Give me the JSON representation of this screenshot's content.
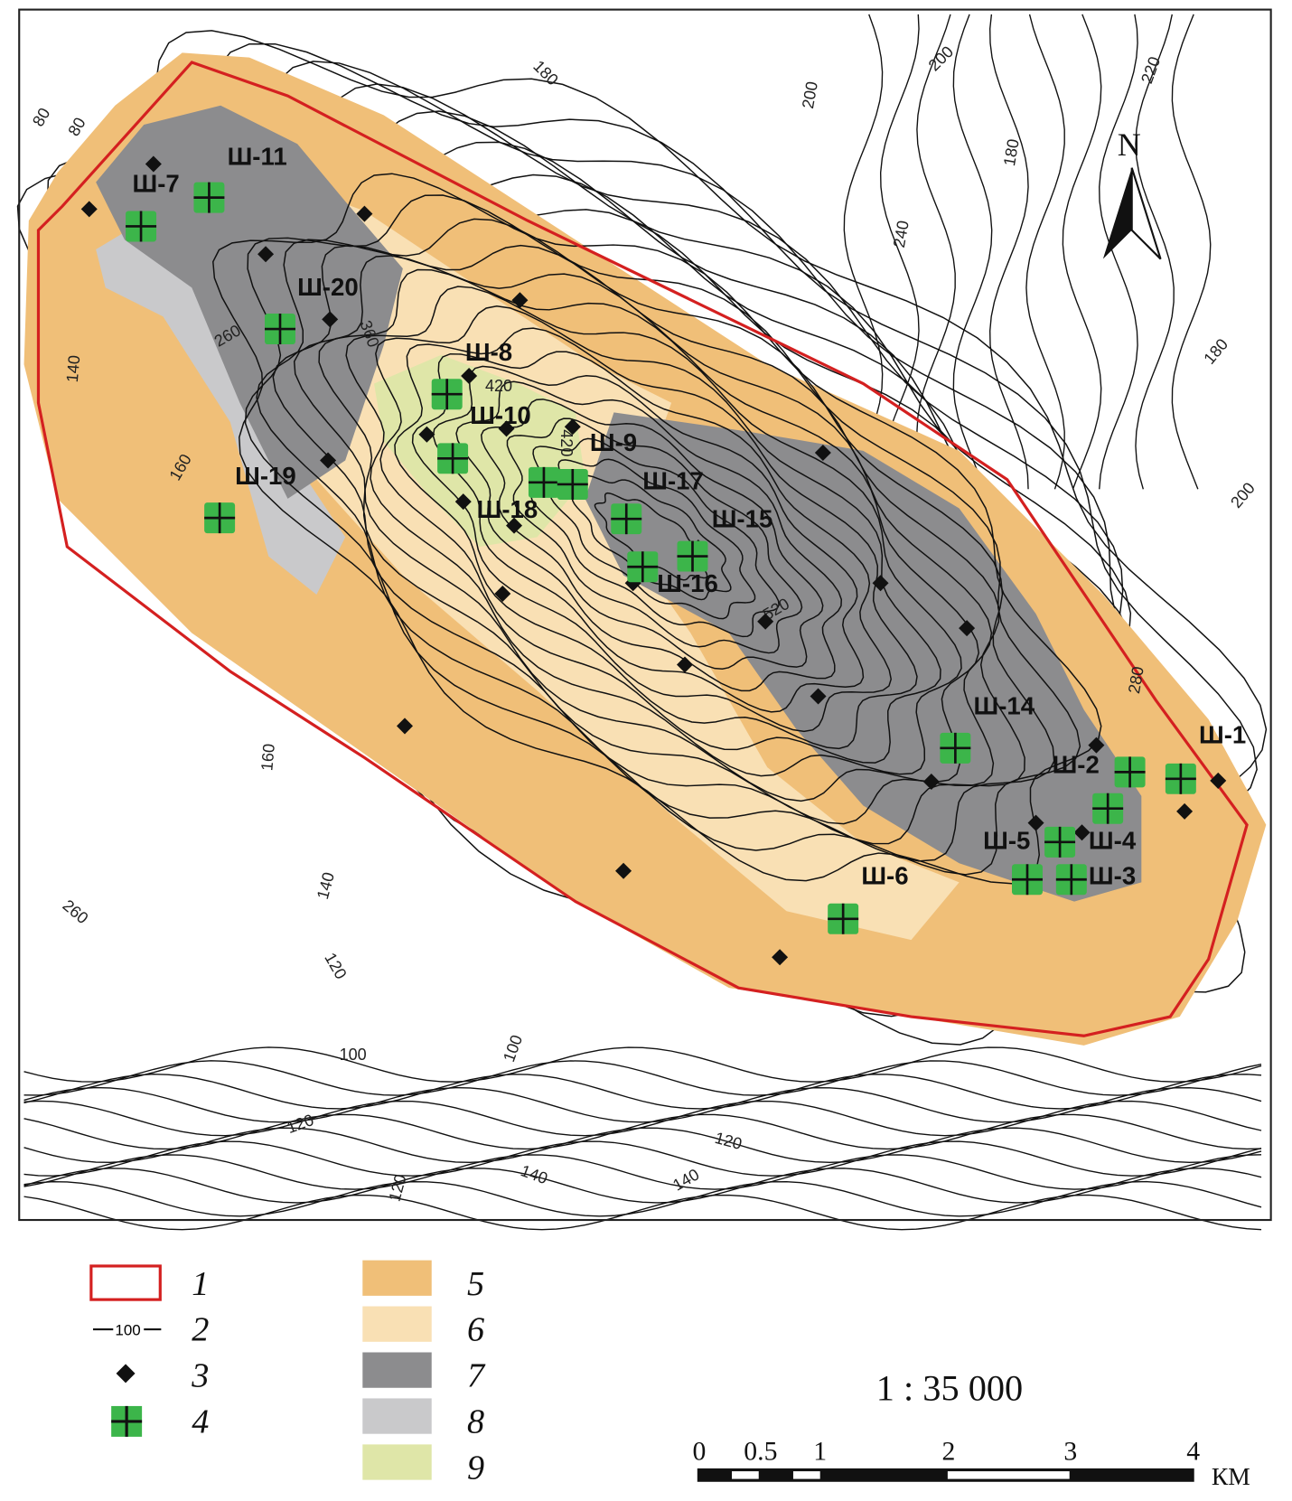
{
  "map": {
    "north_label": "N",
    "wells": [
      "Ш-7",
      "Ш-11",
      "Ш-20",
      "Ш-8",
      "Ш-10",
      "Ш-9",
      "Ш-19",
      "Ш-18",
      "Ш-17",
      "Ш-15",
      "Ш-16",
      "Ш-14",
      "Ш-2",
      "Ш-1",
      "Ш-5",
      "Ш-4",
      "Ш-3",
      "Ш-6"
    ],
    "contour_labels": [
      "80",
      "80",
      "180",
      "200",
      "200",
      "220",
      "180",
      "240",
      "180",
      "200",
      "280",
      "260",
      "360",
      "420",
      "420",
      "520",
      "140",
      "160",
      "160",
      "140",
      "260",
      "120",
      "100",
      "100",
      "120",
      "120",
      "140",
      "140",
      "120"
    ],
    "colors": {
      "zone5": "#f0bf78",
      "zone6": "#f9e0b4",
      "zone7": "#8c8c8e",
      "zone8": "#c9c9cb",
      "zone9": "#dfe6a8",
      "boundary": "#d42020",
      "well_marker": "#3cb54a"
    }
  },
  "legend": {
    "items": [
      {
        "num": "1",
        "symbol": "boundary-rectangle"
      },
      {
        "num": "2",
        "symbol": "contour-line",
        "sample": "100"
      },
      {
        "num": "3",
        "symbol": "diamond"
      },
      {
        "num": "4",
        "symbol": "green-cross"
      },
      {
        "num": "5",
        "symbol": "swatch-zone5"
      },
      {
        "num": "6",
        "symbol": "swatch-zone6"
      },
      {
        "num": "7",
        "symbol": "swatch-zone7"
      },
      {
        "num": "8",
        "symbol": "swatch-zone8"
      },
      {
        "num": "9",
        "symbol": "swatch-zone9"
      }
    ]
  },
  "scale": {
    "ratio": "1 : 35 000",
    "ticks": [
      "0",
      "0.5",
      "1",
      "2",
      "3",
      "4"
    ],
    "unit": "КМ"
  }
}
